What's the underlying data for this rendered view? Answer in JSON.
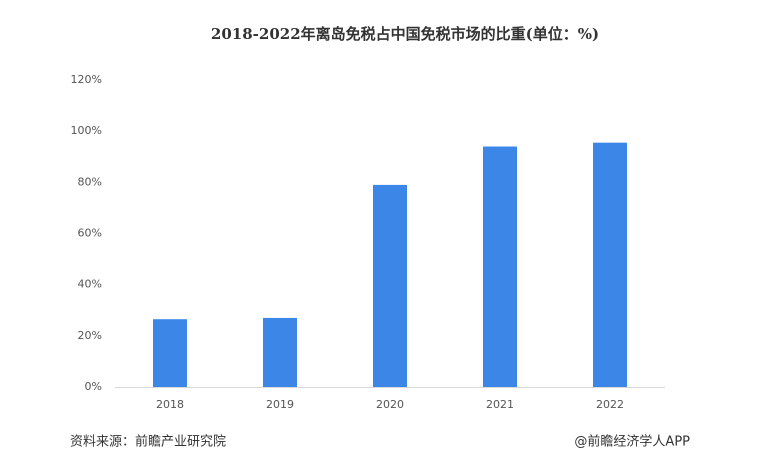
{
  "chart_data": {
    "type": "bar",
    "title": "2018-2022年离岛免税占中国免税市场的比重(单位：%)",
    "categories": [
      "2018",
      "2019",
      "2020",
      "2021",
      "2022"
    ],
    "values": [
      26.5,
      27,
      79,
      94,
      95.5
    ],
    "color": "#3c86e8",
    "ylim": [
      0,
      120
    ],
    "yticks": [
      {
        "value": 0,
        "label": "0%"
      },
      {
        "value": 20,
        "label": "20%"
      },
      {
        "value": 40,
        "label": "40%"
      },
      {
        "value": 60,
        "label": "60%"
      },
      {
        "value": 80,
        "label": "80%"
      },
      {
        "value": 100,
        "label": "100%"
      },
      {
        "value": 120,
        "label": "120%"
      }
    ],
    "grid": false,
    "source": "资料来源：前瞻产业研究院",
    "credit": "@前瞻经济学人APP"
  }
}
